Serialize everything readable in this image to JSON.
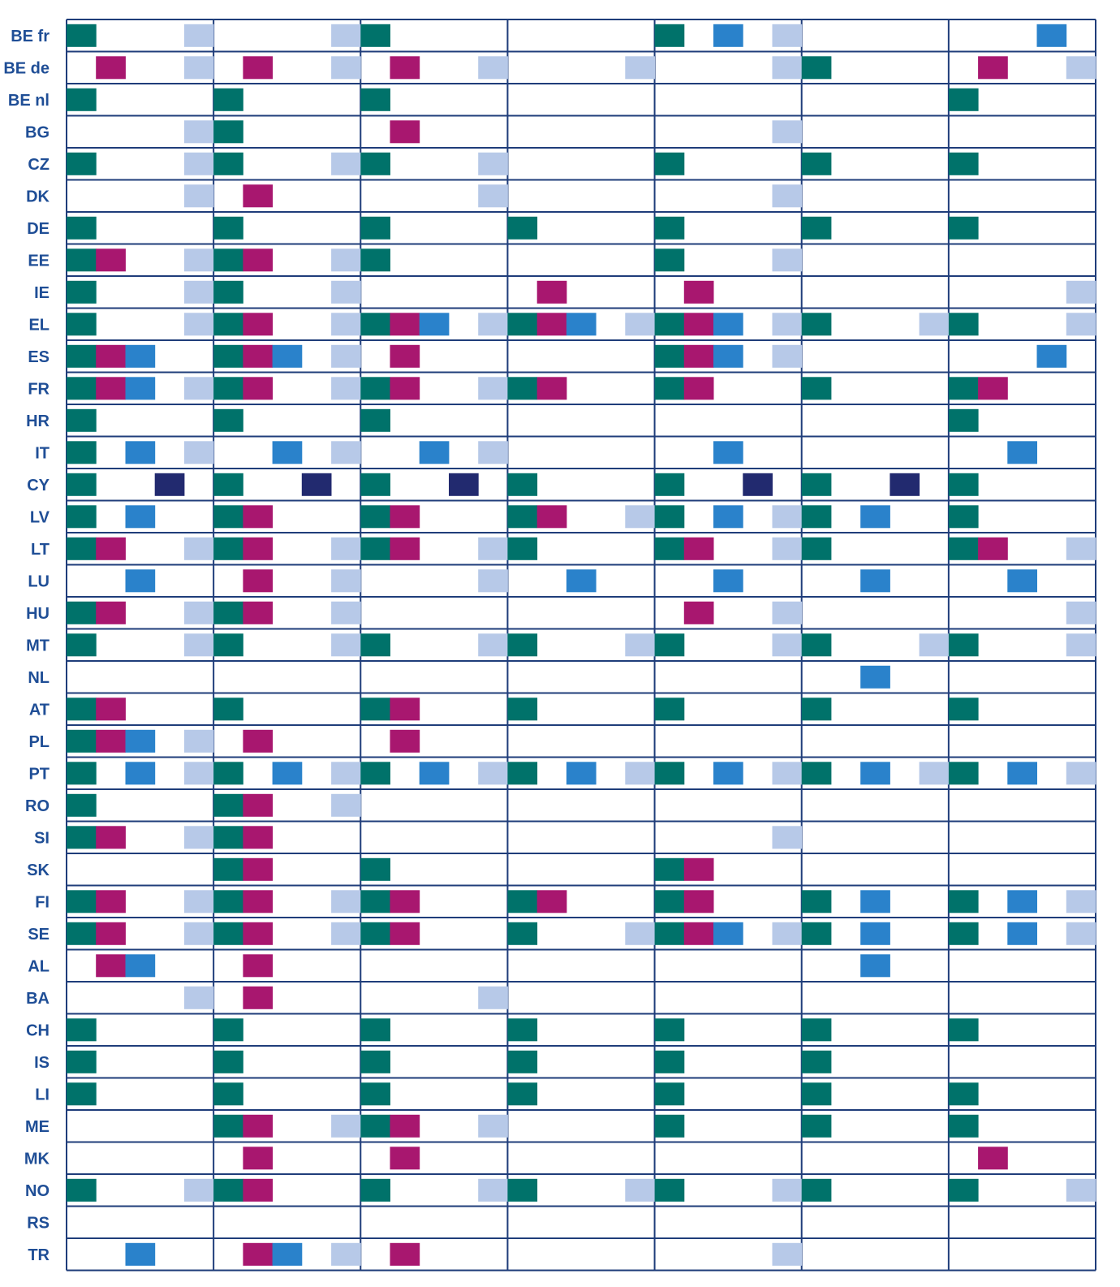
{
  "chart_data": {
    "type": "table",
    "rows": [
      "BE fr",
      "BE de",
      "BE nl",
      "BG",
      "CZ",
      "DK",
      "DE",
      "EE",
      "IE",
      "EL",
      "ES",
      "FR",
      "HR",
      "IT",
      "CY",
      "LV",
      "LT",
      "LU",
      "HU",
      "MT",
      "NL",
      "AT",
      "PL",
      "PT",
      "RO",
      "SI",
      "SK",
      "FI",
      "SE",
      "AL",
      "BA",
      "CH",
      "IS",
      "LI",
      "ME",
      "MK",
      "NO",
      "RS",
      "TR"
    ],
    "column_count": 7,
    "slots_per_column": 5,
    "colors": {
      "a": "#00726a",
      "b": "#a8176f",
      "c": "#2a82cb",
      "d": "#222a6f",
      "e": "#b7c9e8",
      "grid": "#1f3d7a"
    },
    "cells": [
      [
        "a   e",
        "    e",
        "a    ",
        "     ",
        "a c e",
        "     ",
        "   c "
      ],
      [
        " b  e",
        " b  e",
        " b  e",
        "    e",
        "    e",
        "a    ",
        " b  e"
      ],
      [
        "a    ",
        "a    ",
        "a    ",
        "     ",
        "     ",
        "     ",
        "a    "
      ],
      [
        "    e",
        "a    ",
        " b   ",
        "     ",
        "    e",
        "     ",
        "     "
      ],
      [
        "a   e",
        "a   e",
        "a   e",
        "     ",
        "a    ",
        "a    ",
        "a    "
      ],
      [
        "    e",
        " b   ",
        "    e",
        "     ",
        "    e",
        "     ",
        "     "
      ],
      [
        "a    ",
        "a    ",
        "a    ",
        "a    ",
        "a    ",
        "a    ",
        "a    "
      ],
      [
        "ab  e",
        "ab  e",
        "a    ",
        "     ",
        "a   e",
        "     ",
        "     "
      ],
      [
        "a   e",
        "a   e",
        "     ",
        " b   ",
        " b   ",
        "     ",
        "    e"
      ],
      [
        "a   e",
        "ab  e",
        "abc e",
        "abc e",
        "abc e",
        "a   e",
        "a   e"
      ],
      [
        "abc  ",
        "abc e",
        " b   ",
        "     ",
        "abc e",
        "     ",
        "   c "
      ],
      [
        "abc e",
        "ab  e",
        "ab  e",
        "ab   ",
        "ab   ",
        "a    ",
        "ab   "
      ],
      [
        "a    ",
        "a    ",
        "a    ",
        "     ",
        "     ",
        "     ",
        "a    "
      ],
      [
        "a c e",
        "  c e",
        "  c e",
        "     ",
        "  c  ",
        "     ",
        "  c  "
      ],
      [
        "a  d ",
        "a  d ",
        "a  d ",
        "a    ",
        "a  d ",
        "a  d ",
        "a    "
      ],
      [
        "a c  ",
        "ab   ",
        "ab   ",
        "ab  e",
        "a c e",
        "a c  ",
        "a    "
      ],
      [
        "ab  e",
        "ab  e",
        "ab  e",
        "a    ",
        "ab  e",
        "a    ",
        "ab  e"
      ],
      [
        "  c  ",
        " b  e",
        "    e",
        "  c  ",
        "  c  ",
        "  c  ",
        "  c  "
      ],
      [
        "ab  e",
        "ab  e",
        "     ",
        "     ",
        " b  e",
        "     ",
        "    e"
      ],
      [
        "a   e",
        "a   e",
        "a   e",
        "a   e",
        "a   e",
        "a   e",
        "a   e"
      ],
      [
        "     ",
        "     ",
        "     ",
        "     ",
        "     ",
        "  c  ",
        "     "
      ],
      [
        "ab   ",
        "a    ",
        "ab   ",
        "a    ",
        "a    ",
        "a    ",
        "a    "
      ],
      [
        "abc e",
        " b   ",
        " b   ",
        "     ",
        "     ",
        "     ",
        "     "
      ],
      [
        "a c e",
        "a c e",
        "a c e",
        "a c e",
        "a c e",
        "a c e",
        "a c e"
      ],
      [
        "a    ",
        "ab  e",
        "     ",
        "     ",
        "     ",
        "     ",
        "     "
      ],
      [
        "ab  e",
        "ab   ",
        "     ",
        "     ",
        "    e",
        "     ",
        "     "
      ],
      [
        "     ",
        "ab   ",
        "a    ",
        "     ",
        "ab   ",
        "     ",
        "     "
      ],
      [
        "ab  e",
        "ab  e",
        "ab   ",
        "ab   ",
        "ab   ",
        "a c  ",
        "a c e"
      ],
      [
        "ab  e",
        "ab  e",
        "ab   ",
        "a   e",
        "abc e",
        "a c  ",
        "a c e"
      ],
      [
        " bc  ",
        " b   ",
        "     ",
        "     ",
        "     ",
        "  c  ",
        "     "
      ],
      [
        "    e",
        " b   ",
        "    e",
        "     ",
        "     ",
        "     ",
        "     "
      ],
      [
        "a    ",
        "a    ",
        "a    ",
        "a    ",
        "a    ",
        "a    ",
        "a    "
      ],
      [
        "a    ",
        "a    ",
        "a    ",
        "a    ",
        "a    ",
        "a    ",
        "     "
      ],
      [
        "a    ",
        "a    ",
        "a    ",
        "a    ",
        "a    ",
        "a    ",
        "a    "
      ],
      [
        "     ",
        "ab  e",
        "ab  e",
        "     ",
        "a    ",
        "a    ",
        "a    "
      ],
      [
        "     ",
        " b   ",
        " b   ",
        "     ",
        "     ",
        "     ",
        " b   "
      ],
      [
        "a   e",
        "ab   ",
        "a   e",
        "a   e",
        "a   e",
        "a    ",
        "a   e"
      ],
      [
        "     ",
        "     ",
        "     ",
        "     ",
        "     ",
        "     ",
        "     "
      ],
      [
        "  c  ",
        " bc e",
        " b   ",
        "     ",
        "    e",
        "     ",
        "     "
      ]
    ]
  }
}
